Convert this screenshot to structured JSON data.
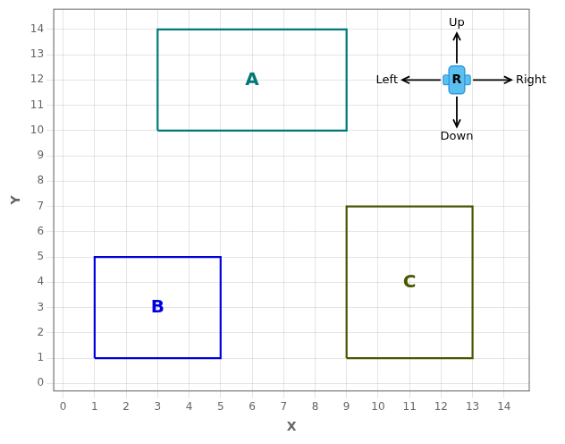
{
  "chart_data": {
    "type": "diagram",
    "xlabel": "X",
    "ylabel": "Y",
    "xlim": [
      -0.3,
      14.8
    ],
    "ylim": [
      -0.3,
      14.8
    ],
    "xticks": [
      0,
      1,
      2,
      3,
      4,
      5,
      6,
      7,
      8,
      9,
      10,
      11,
      12,
      13,
      14
    ],
    "yticks": [
      0,
      1,
      2,
      3,
      4,
      5,
      6,
      7,
      8,
      9,
      10,
      11,
      12,
      13,
      14
    ],
    "grid": true,
    "rectangles": [
      {
        "label": "A",
        "x": 3,
        "y": 10,
        "w": 6,
        "h": 4,
        "color": "#007878"
      },
      {
        "label": "B",
        "x": 1,
        "y": 1,
        "w": 4,
        "h": 4,
        "color": "#0000dd"
      },
      {
        "label": "C",
        "x": 9,
        "y": 1,
        "w": 4,
        "h": 6,
        "color": "#4a5500"
      }
    ],
    "robot": {
      "label": "R",
      "x": 12.5,
      "y": 12.0,
      "color": "#5bc0f0",
      "edge_color": "#3399dd",
      "body_w": 0.5,
      "body_h": 1.1,
      "wheel_w": 0.18,
      "wheel_h": 0.38
    },
    "arrows": {
      "length_v": 1.3,
      "length_h": 1.3,
      "color": "#000000",
      "labels": {
        "up": "Up",
        "down": "Down",
        "left": "Left",
        "right": "Right"
      }
    }
  }
}
